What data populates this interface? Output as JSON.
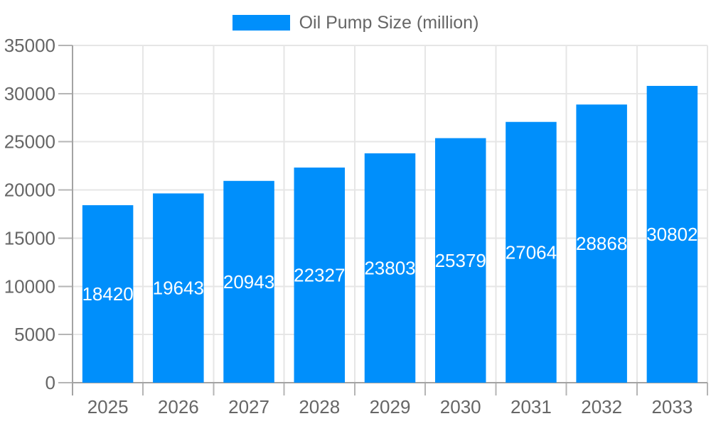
{
  "chart_data": {
    "type": "bar",
    "title": "",
    "legend": "Oil Pump Size (million)",
    "legend_position": "top",
    "categories": [
      "2025",
      "2026",
      "2027",
      "2028",
      "2029",
      "2030",
      "2031",
      "2032",
      "2033"
    ],
    "series": [
      {
        "name": "Oil Pump Size (million)",
        "values": [
          18420,
          19643,
          20943,
          22327,
          23803,
          25379,
          27064,
          28868,
          30802
        ]
      }
    ],
    "yticks": [
      0,
      5000,
      10000,
      15000,
      20000,
      25000,
      30000,
      35000
    ],
    "ylim": [
      0,
      35000
    ],
    "xlabel": "",
    "ylabel": "",
    "grid": true,
    "value_labels": "inside-center",
    "colors": {
      "bar": "#008FFB",
      "value_label": "#FFFFFF",
      "axis_text": "#666666"
    }
  }
}
